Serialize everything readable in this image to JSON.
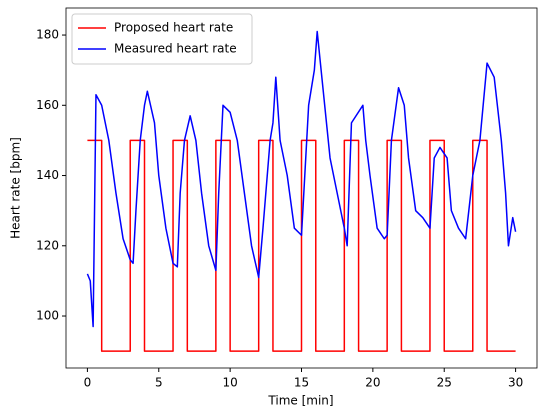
{
  "chart_data": {
    "type": "line",
    "xlabel": "Time [min]",
    "ylabel": "Heart rate [bpm]",
    "xlim": [
      -1.5,
      31.5
    ],
    "xticks": [
      0,
      5,
      10,
      15,
      20,
      25,
      30
    ],
    "ylim": [
      85.2,
      187.7
    ],
    "yticks": [
      100,
      120,
      140,
      160,
      180
    ],
    "legend": "upper left",
    "grid": false,
    "series": [
      {
        "name": "Proposed heart rate",
        "color": "#ff0000",
        "x": [
          0,
          1,
          1,
          3,
          3,
          4,
          4,
          6,
          6,
          7,
          7,
          9,
          9,
          10,
          10,
          12,
          12,
          13,
          13,
          15,
          15,
          16,
          16,
          18,
          18,
          19,
          19,
          21,
          21,
          22,
          22,
          24,
          24,
          25,
          25,
          27,
          27,
          28,
          28,
          30
        ],
        "values": [
          150,
          150,
          90,
          90,
          150,
          150,
          90,
          90,
          150,
          150,
          90,
          90,
          150,
          150,
          90,
          90,
          150,
          150,
          90,
          90,
          150,
          150,
          90,
          90,
          150,
          150,
          90,
          90,
          150,
          150,
          90,
          90,
          150,
          150,
          90,
          90,
          150,
          150,
          90,
          90
        ]
      },
      {
        "name": "Measured heart rate",
        "color": "#0000ff",
        "x": [
          0,
          0.2,
          0.4,
          0.6,
          1,
          1.5,
          2,
          2.5,
          3,
          3.2,
          3.4,
          3.7,
          4,
          4.2,
          4.7,
          5,
          5.5,
          6,
          6.3,
          6.5,
          6.8,
          7.2,
          7.6,
          8,
          8.5,
          9,
          9.2,
          9.5,
          10,
          10.5,
          11,
          11.5,
          12,
          12.3,
          12.8,
          13,
          13.2,
          13.5,
          14,
          14.5,
          15,
          15.5,
          15.9,
          16.1,
          16.5,
          17,
          17.5,
          18,
          18.2,
          18.5,
          19.3,
          19.5,
          19.8,
          20.3,
          20.8,
          21,
          21.3,
          21.8,
          22.2,
          22.5,
          23,
          23.5,
          24,
          24.3,
          24.7,
          25.2,
          25.5,
          26,
          26.5,
          27,
          27.5,
          28,
          28.5,
          29,
          29.3,
          29.5,
          29.8,
          30
        ],
        "values": [
          112,
          110,
          97,
          163,
          160,
          150,
          135,
          122,
          116,
          115,
          130,
          150,
          160,
          164,
          155,
          140,
          125,
          115,
          114,
          135,
          150,
          157,
          150,
          135,
          120,
          113,
          135,
          160,
          158,
          150,
          135,
          120,
          111,
          125,
          150,
          155,
          168,
          150,
          140,
          125,
          123,
          160,
          170,
          181,
          165,
          145,
          135,
          125,
          120,
          155,
          160,
          150,
          140,
          125,
          122,
          123,
          150,
          165,
          160,
          145,
          130,
          128,
          125,
          145,
          148,
          145,
          130,
          125,
          122,
          140,
          150,
          172,
          168,
          150,
          135,
          120,
          128,
          124
        ]
      }
    ]
  }
}
